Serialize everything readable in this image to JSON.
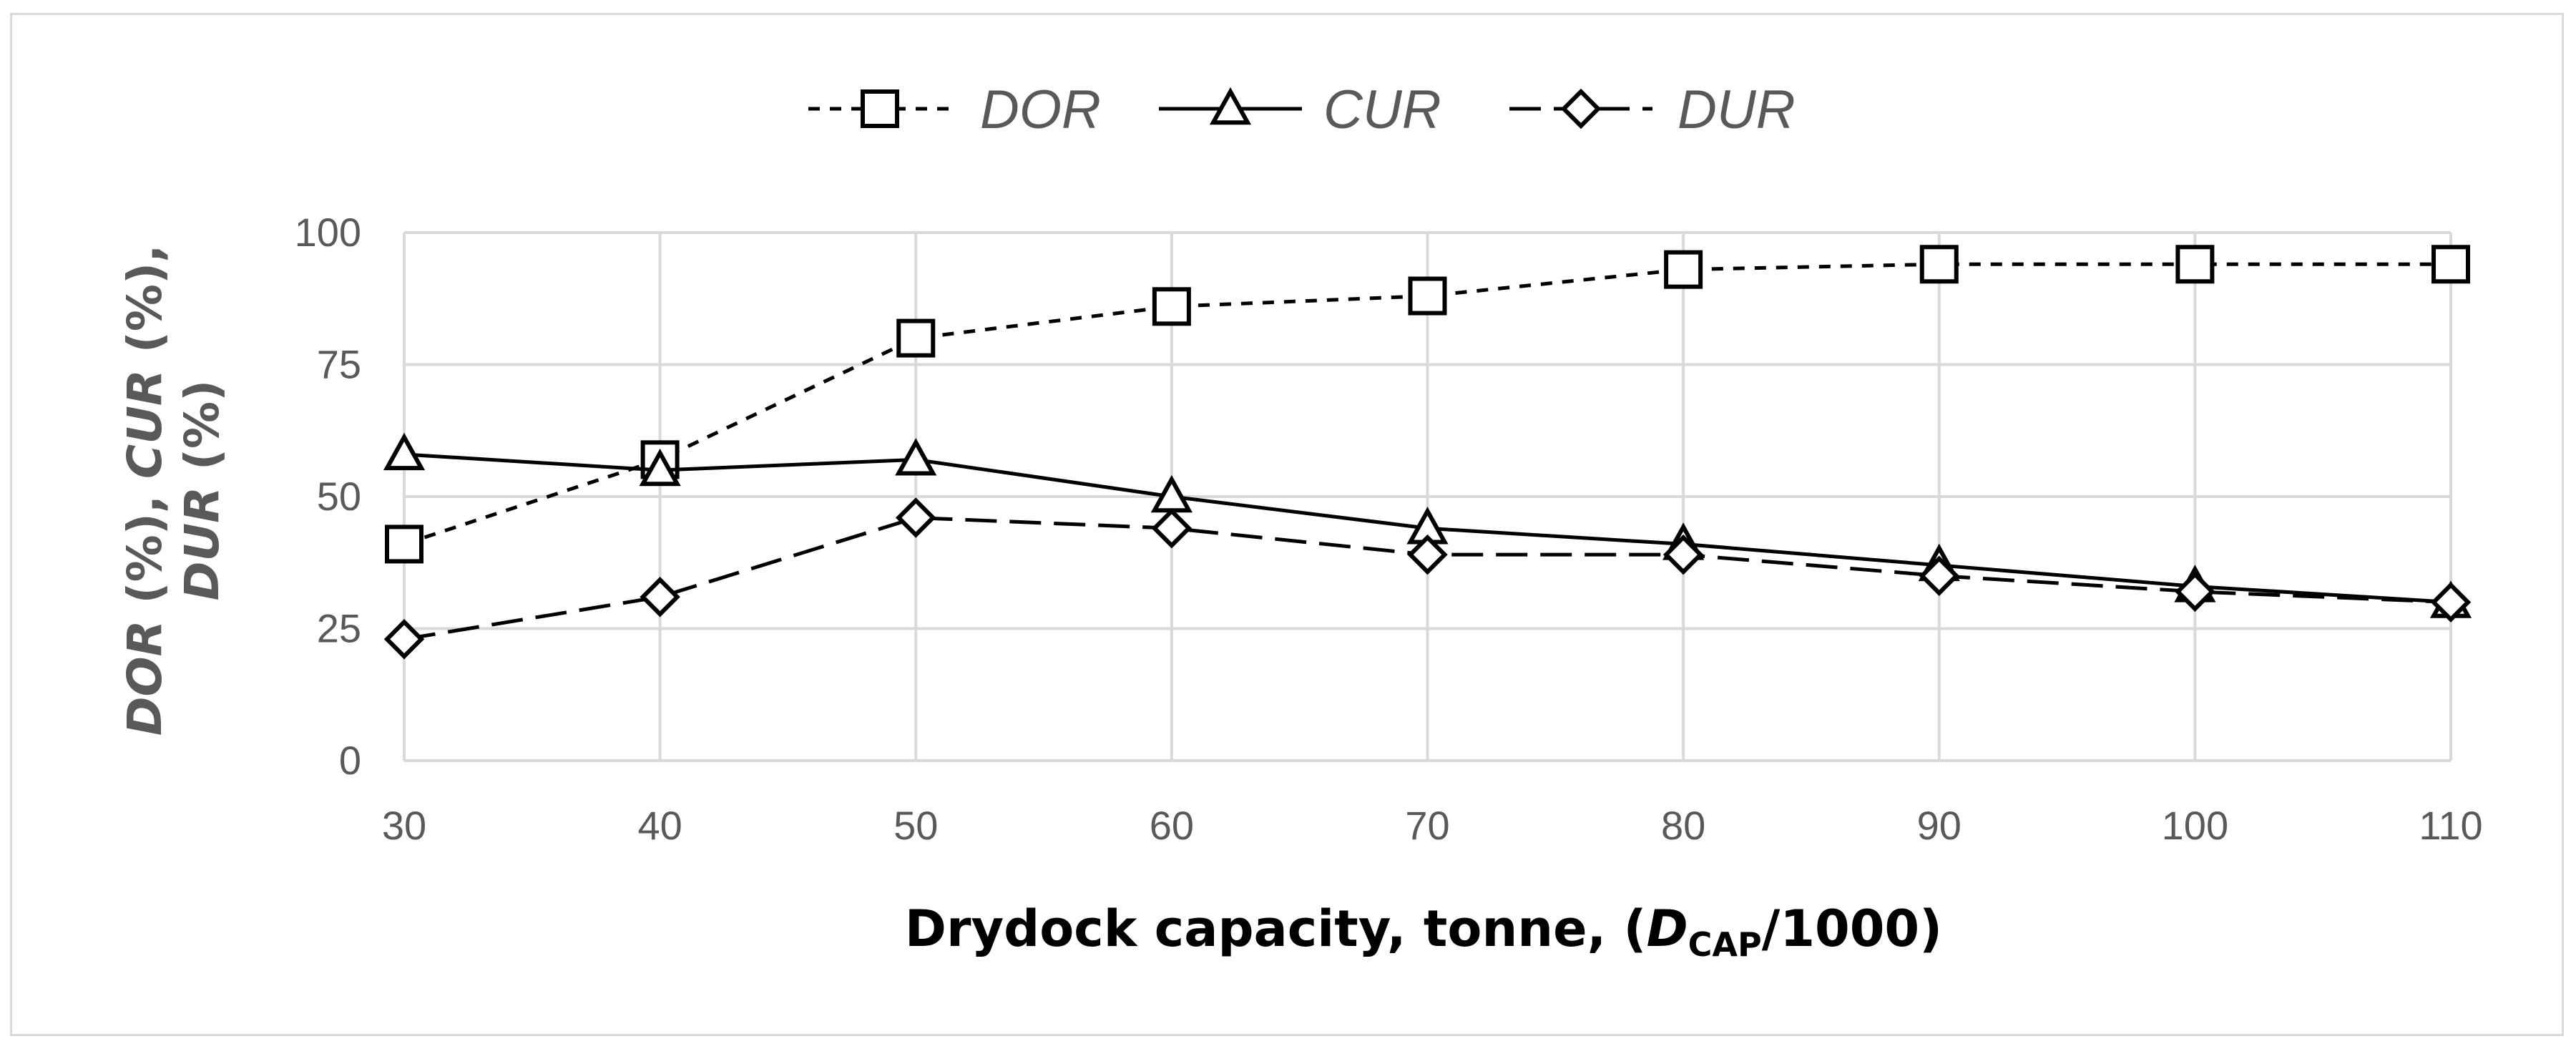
{
  "chart_data": {
    "type": "line",
    "x": [
      30,
      40,
      50,
      60,
      70,
      80,
      90,
      100,
      110
    ],
    "series": [
      {
        "name": "DOR",
        "values": [
          41,
          57,
          80,
          86,
          88,
          93,
          94,
          94,
          94
        ],
        "marker": "square",
        "dash": "short-dash"
      },
      {
        "name": "CUR",
        "values": [
          58,
          55,
          57,
          50,
          44,
          41,
          37,
          33,
          30
        ],
        "marker": "triangle",
        "dash": "solid"
      },
      {
        "name": "DUR",
        "values": [
          23,
          31,
          46,
          44,
          39,
          39,
          35,
          32,
          30
        ],
        "marker": "diamond",
        "dash": "long-dash"
      }
    ],
    "xlim": [
      30,
      110
    ],
    "ylim": [
      0,
      100
    ],
    "yticks": [
      0,
      25,
      50,
      75,
      100
    ],
    "xticks": [
      30,
      40,
      50,
      60,
      70,
      80,
      90,
      100,
      110
    ],
    "xlabel": {
      "prefix": "Drydock capacity, tonne, (",
      "var": "D",
      "sub": "CAP",
      "suffix": "/1000)"
    },
    "ylabel": {
      "line1": [
        {
          "text": "DOR",
          "italic": true
        },
        {
          "text": " (%), ",
          "italic": false
        },
        {
          "text": "CUR",
          "italic": true
        },
        {
          "text": " (%),",
          "italic": false
        }
      ],
      "line2": [
        {
          "text": "DUR",
          "italic": true
        },
        {
          "text": " (%)",
          "italic": false
        }
      ]
    },
    "grid": true,
    "legend_position": "top-center",
    "colors": {
      "line": "#000000",
      "grid": "#d9d9d9",
      "text": "#595959"
    }
  }
}
